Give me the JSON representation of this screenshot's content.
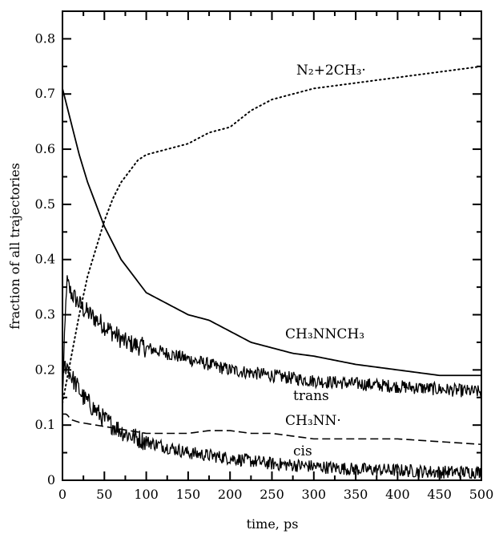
{
  "chart_data": {
    "type": "line",
    "title": "",
    "xlabel": "time, ps",
    "ylabel": "fraction of all trajectories",
    "xlim": [
      0,
      500
    ],
    "ylim": [
      0,
      0.85
    ],
    "xticks": [
      "0",
      "50",
      "100",
      "150",
      "200",
      "250",
      "300",
      "350",
      "400",
      "450",
      "500"
    ],
    "yticks": [
      "0",
      "0.1",
      "0.2",
      "0.3",
      "0.4",
      "0.5",
      "0.6",
      "0.7",
      "0.8"
    ],
    "grid": false,
    "legend": "none",
    "series": [
      {
        "name": "N₂+2CH₃·",
        "style": "dotted",
        "noisy": false,
        "x": [
          0,
          10,
          20,
          30,
          40,
          50,
          60,
          70,
          80,
          90,
          100,
          125,
          150,
          175,
          200,
          225,
          250,
          275,
          300,
          350,
          400,
          450,
          500
        ],
        "y": [
          0.14,
          0.22,
          0.3,
          0.37,
          0.42,
          0.47,
          0.51,
          0.54,
          0.56,
          0.58,
          0.59,
          0.6,
          0.61,
          0.63,
          0.64,
          0.67,
          0.69,
          0.7,
          0.71,
          0.72,
          0.73,
          0.74,
          0.75
        ]
      },
      {
        "name": "CH₃NNCH₃",
        "style": "solid",
        "noisy": false,
        "x": [
          0,
          10,
          20,
          30,
          40,
          50,
          60,
          70,
          80,
          90,
          100,
          125,
          150,
          175,
          200,
          225,
          250,
          275,
          300,
          350,
          400,
          450,
          500
        ],
        "y": [
          0.71,
          0.65,
          0.59,
          0.54,
          0.5,
          0.46,
          0.43,
          0.4,
          0.38,
          0.36,
          0.34,
          0.32,
          0.3,
          0.29,
          0.27,
          0.25,
          0.24,
          0.23,
          0.225,
          0.21,
          0.2,
          0.19,
          0.19
        ]
      },
      {
        "name": "trans",
        "style": "solid",
        "noisy": true,
        "x": [
          0,
          5,
          10,
          25,
          50,
          75,
          100,
          150,
          200,
          250,
          300,
          350,
          400,
          450,
          500
        ],
        "y": [
          0.15,
          0.36,
          0.34,
          0.31,
          0.28,
          0.25,
          0.24,
          0.22,
          0.2,
          0.19,
          0.18,
          0.175,
          0.17,
          0.165,
          0.16
        ]
      },
      {
        "name": "CH₃NN·",
        "style": "dashed",
        "noisy": false,
        "x": [
          0,
          5,
          10,
          20,
          40,
          60,
          80,
          100,
          125,
          150,
          175,
          200,
          225,
          250,
          275,
          300,
          350,
          400,
          450,
          500
        ],
        "y": [
          0.12,
          0.12,
          0.11,
          0.105,
          0.1,
          0.095,
          0.09,
          0.085,
          0.085,
          0.085,
          0.09,
          0.09,
          0.085,
          0.085,
          0.08,
          0.075,
          0.075,
          0.075,
          0.07,
          0.065
        ]
      },
      {
        "name": "cis",
        "style": "solid",
        "noisy": true,
        "x": [
          0,
          5,
          10,
          25,
          50,
          75,
          100,
          150,
          200,
          250,
          300,
          350,
          400,
          450,
          500
        ],
        "y": [
          0.2,
          0.21,
          0.19,
          0.15,
          0.11,
          0.085,
          0.07,
          0.05,
          0.04,
          0.03,
          0.025,
          0.02,
          0.018,
          0.015,
          0.015
        ]
      }
    ]
  }
}
